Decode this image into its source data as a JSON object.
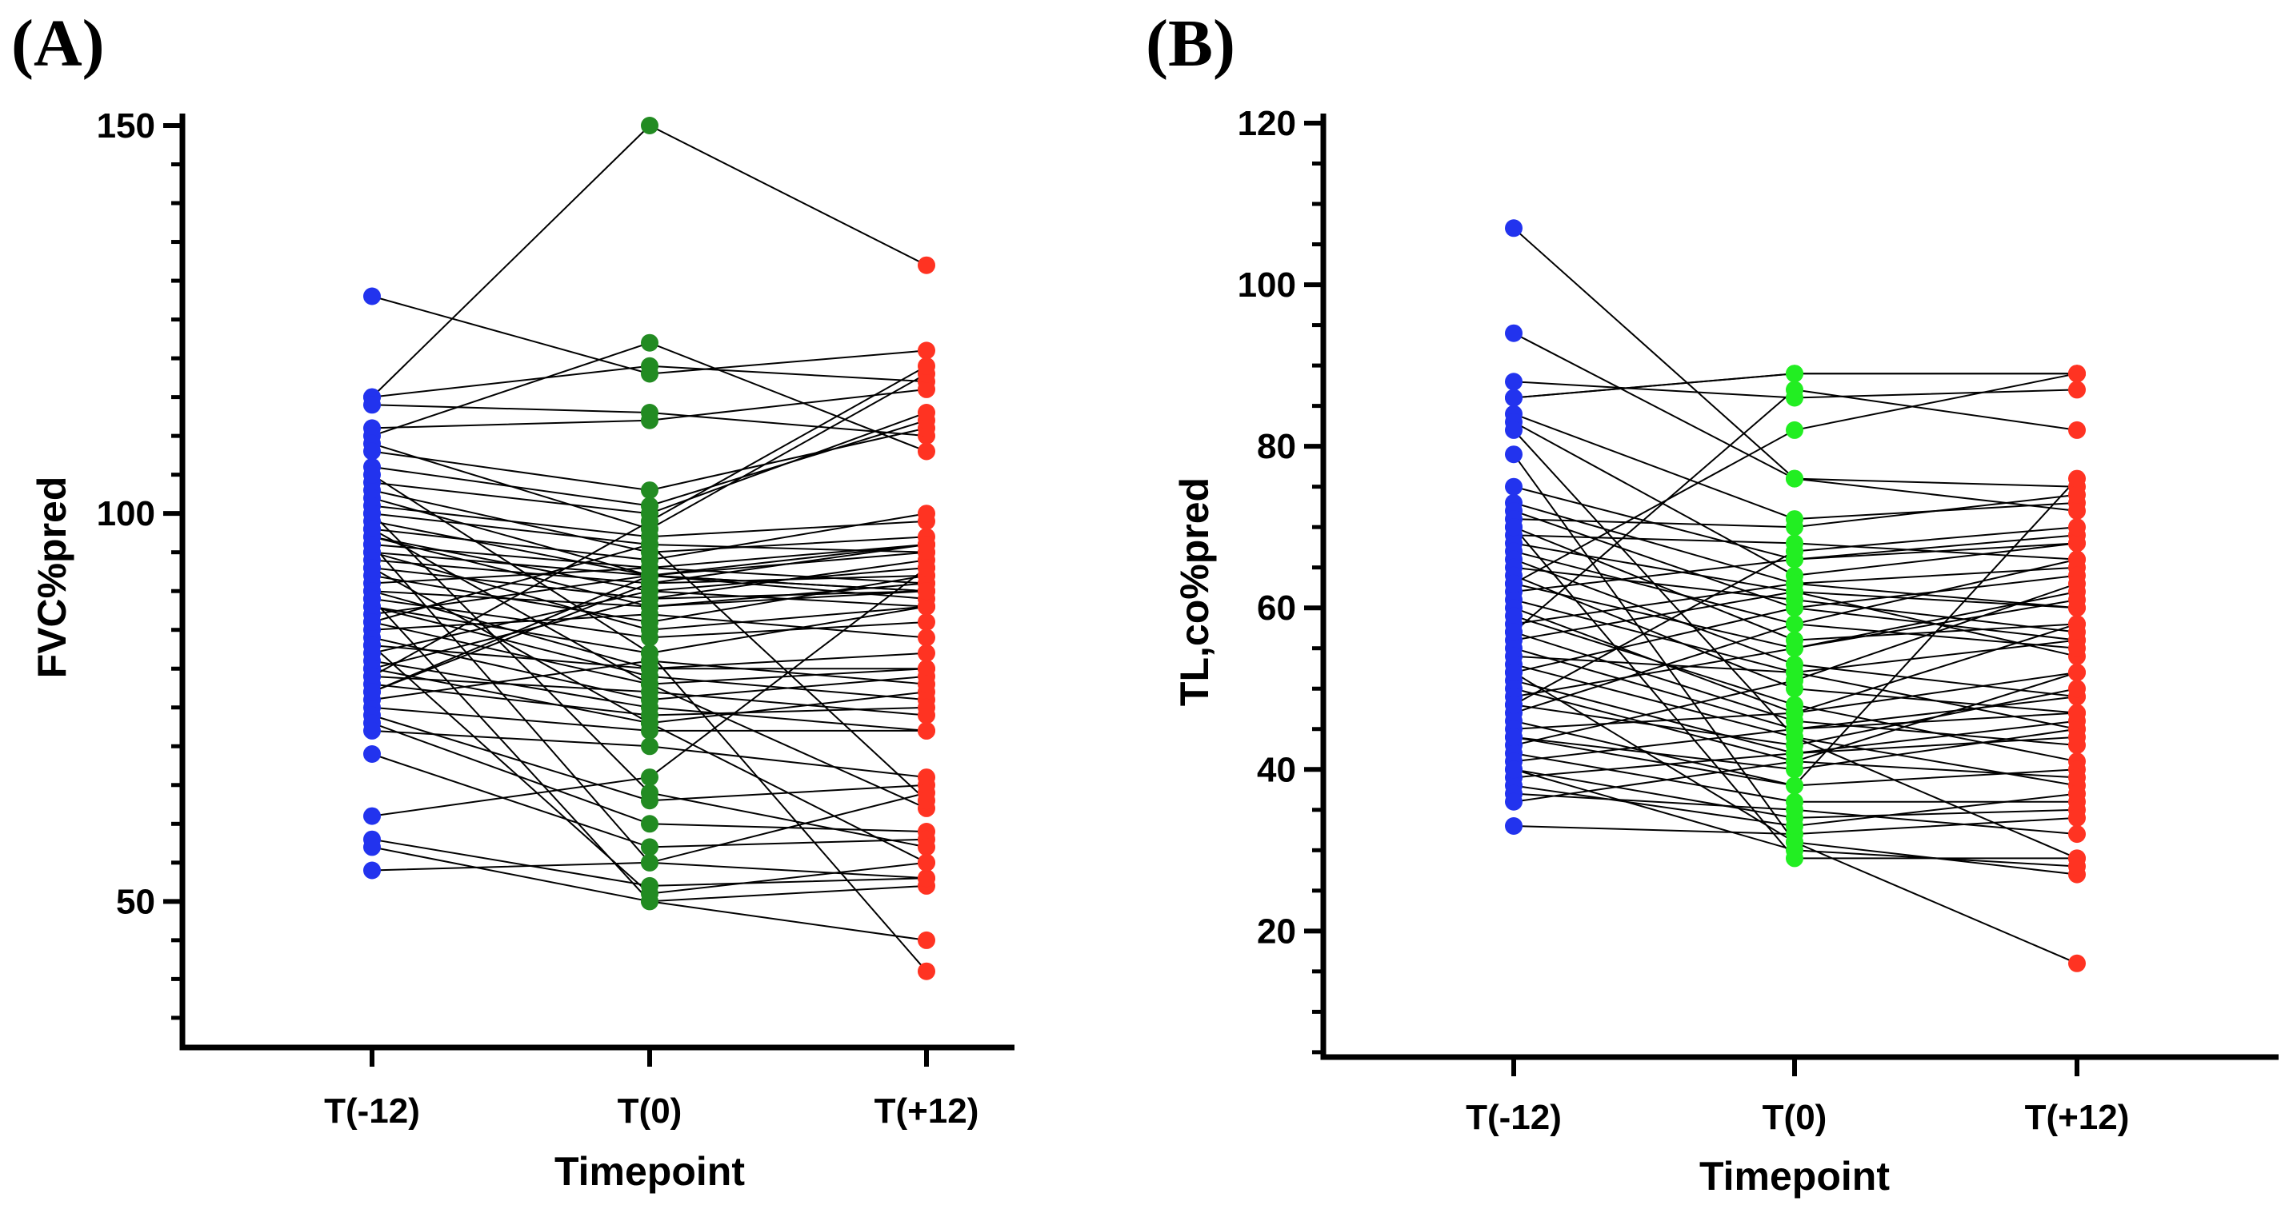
{
  "chart_data": [
    {
      "panel_label": "(A)",
      "type": "line",
      "subtype": "paired-dot (spaghetti) plot",
      "xlabel": "Timepoint",
      "ylabel": "FVC%pred",
      "categories": [
        "T(-12)",
        "T(0)",
        "T(+12)"
      ],
      "ylim": [
        32,
        150
      ],
      "yticks": [
        50,
        100,
        150
      ],
      "ytick_labels": [
        "50",
        "100",
        "150"
      ],
      "minor_tick_step": 5,
      "colors": [
        "#2233ee",
        "#228b22",
        "#ff3322"
      ],
      "subjects": [
        [
          128,
          118,
          121
        ],
        [
          115,
          150,
          132
        ],
        [
          115,
          119,
          117
        ],
        [
          114,
          113,
          110
        ],
        [
          111,
          112,
          116
        ],
        [
          110,
          122,
          108
        ],
        [
          109,
          98,
          118
        ],
        [
          108,
          103,
          111
        ],
        [
          106,
          101,
          112
        ],
        [
          104,
          100,
          113
        ],
        [
          103,
          95,
          97
        ],
        [
          102,
          92,
          96
        ],
        [
          101,
          97,
          99
        ],
        [
          100,
          96,
          95
        ],
        [
          99,
          92,
          90
        ],
        [
          98,
          94,
          100
        ],
        [
          97,
          90,
          93
        ],
        [
          97,
          88,
          91
        ],
        [
          96,
          93,
          96
        ],
        [
          95,
          92,
          90
        ],
        [
          95,
          85,
          88
        ],
        [
          94,
          91,
          92
        ],
        [
          93,
          89,
          94
        ],
        [
          92,
          86,
          92
        ],
        [
          91,
          93,
          91
        ],
        [
          90,
          80,
          80
        ],
        [
          90,
          88,
          90
        ],
        [
          89,
          84,
          86
        ],
        [
          88,
          82,
          88
        ],
        [
          88,
          79,
          76
        ],
        [
          87,
          92,
          89
        ],
        [
          86,
          78,
          80
        ],
        [
          85,
          87,
          84
        ],
        [
          84,
          76,
          79
        ],
        [
          83,
          80,
          82
        ],
        [
          82,
          90,
          88
        ],
        [
          81,
          75,
          72
        ],
        [
          80,
          73,
          77
        ],
        [
          80,
          89,
          90
        ],
        [
          79,
          77,
          74
        ],
        [
          78,
          74,
          75
        ],
        [
          77,
          92,
          95
        ],
        [
          76,
          81,
          78
        ],
        [
          75,
          72,
          72
        ],
        [
          74,
          63,
          65
        ],
        [
          73,
          60,
          59
        ],
        [
          72,
          70,
          66
        ],
        [
          69,
          57,
          58
        ],
        [
          61,
          66,
          93
        ],
        [
          58,
          52,
          53
        ],
        [
          57,
          50,
          52
        ],
        [
          54,
          55,
          64
        ],
        [
          105,
          82,
          41
        ],
        [
          100,
          64,
          57
        ],
        [
          98,
          78,
          62
        ],
        [
          96,
          55,
          53
        ],
        [
          93,
          73,
          55
        ],
        [
          86,
          96,
          63
        ],
        [
          83,
          51,
          55
        ],
        [
          79,
          99,
          119
        ],
        [
          77,
          91,
          96
        ],
        [
          89,
          50,
          45
        ]
      ]
    },
    {
      "panel_label": "(B)",
      "type": "line",
      "subtype": "paired-dot (spaghetti) plot",
      "xlabel": "Timepoint",
      "ylabel": "TL,co%pred",
      "categories": [
        "T(-12)",
        "T(0)",
        "T(+12)"
      ],
      "ylim": [
        4,
        120
      ],
      "yticks": [
        20,
        40,
        60,
        80,
        100,
        120
      ],
      "ytick_labels": [
        "20",
        "40",
        "60",
        "80",
        "100",
        "120"
      ],
      "minor_tick_step": 5,
      "colors": [
        "#2233ee",
        "#22ee22",
        "#ff3322"
      ],
      "subjects": [
        [
          107,
          76,
          75
        ],
        [
          94,
          76,
          72
        ],
        [
          88,
          86,
          87
        ],
        [
          86,
          89,
          89
        ],
        [
          84,
          71,
          73
        ],
        [
          83,
          64,
          68
        ],
        [
          75,
          66,
          69
        ],
        [
          73,
          63,
          60
        ],
        [
          72,
          60,
          56
        ],
        [
          71,
          70,
          74
        ],
        [
          70,
          56,
          58
        ],
        [
          69,
          68,
          66
        ],
        [
          68,
          62,
          54
        ],
        [
          67,
          58,
          66
        ],
        [
          66,
          53,
          49
        ],
        [
          65,
          61,
          57
        ],
        [
          64,
          50,
          47
        ],
        [
          63,
          55,
          62
        ],
        [
          62,
          66,
          68
        ],
        [
          61,
          52,
          45
        ],
        [
          60,
          47,
          52
        ],
        [
          59,
          48,
          41
        ],
        [
          58,
          63,
          65
        ],
        [
          57,
          46,
          43
        ],
        [
          56,
          62,
          60
        ],
        [
          55,
          45,
          49
        ],
        [
          54,
          52,
          56
        ],
        [
          53,
          44,
          38
        ],
        [
          52,
          60,
          64
        ],
        [
          51,
          42,
          46
        ],
        [
          50,
          41,
          52
        ],
        [
          49,
          55,
          61
        ],
        [
          48,
          43,
          50
        ],
        [
          47,
          58,
          55
        ],
        [
          46,
          38,
          40
        ],
        [
          45,
          47,
          58
        ],
        [
          44,
          40,
          45
        ],
        [
          43,
          51,
          63
        ],
        [
          42,
          36,
          36
        ],
        [
          41,
          45,
          47
        ],
        [
          40,
          34,
          35
        ],
        [
          39,
          42,
          44
        ],
        [
          38,
          33,
          37
        ],
        [
          37,
          35,
          32
        ],
        [
          36,
          41,
          39
        ],
        [
          33,
          32,
          34
        ],
        [
          86,
          89,
          89
        ],
        [
          82,
          44,
          29
        ],
        [
          79,
          31,
          16
        ],
        [
          70,
          29,
          29
        ],
        [
          63,
          82,
          89
        ],
        [
          57,
          87,
          82
        ],
        [
          52,
          31,
          27
        ],
        [
          48,
          67,
          70
        ],
        [
          44,
          38,
          76
        ],
        [
          40,
          30,
          28
        ]
      ]
    }
  ]
}
